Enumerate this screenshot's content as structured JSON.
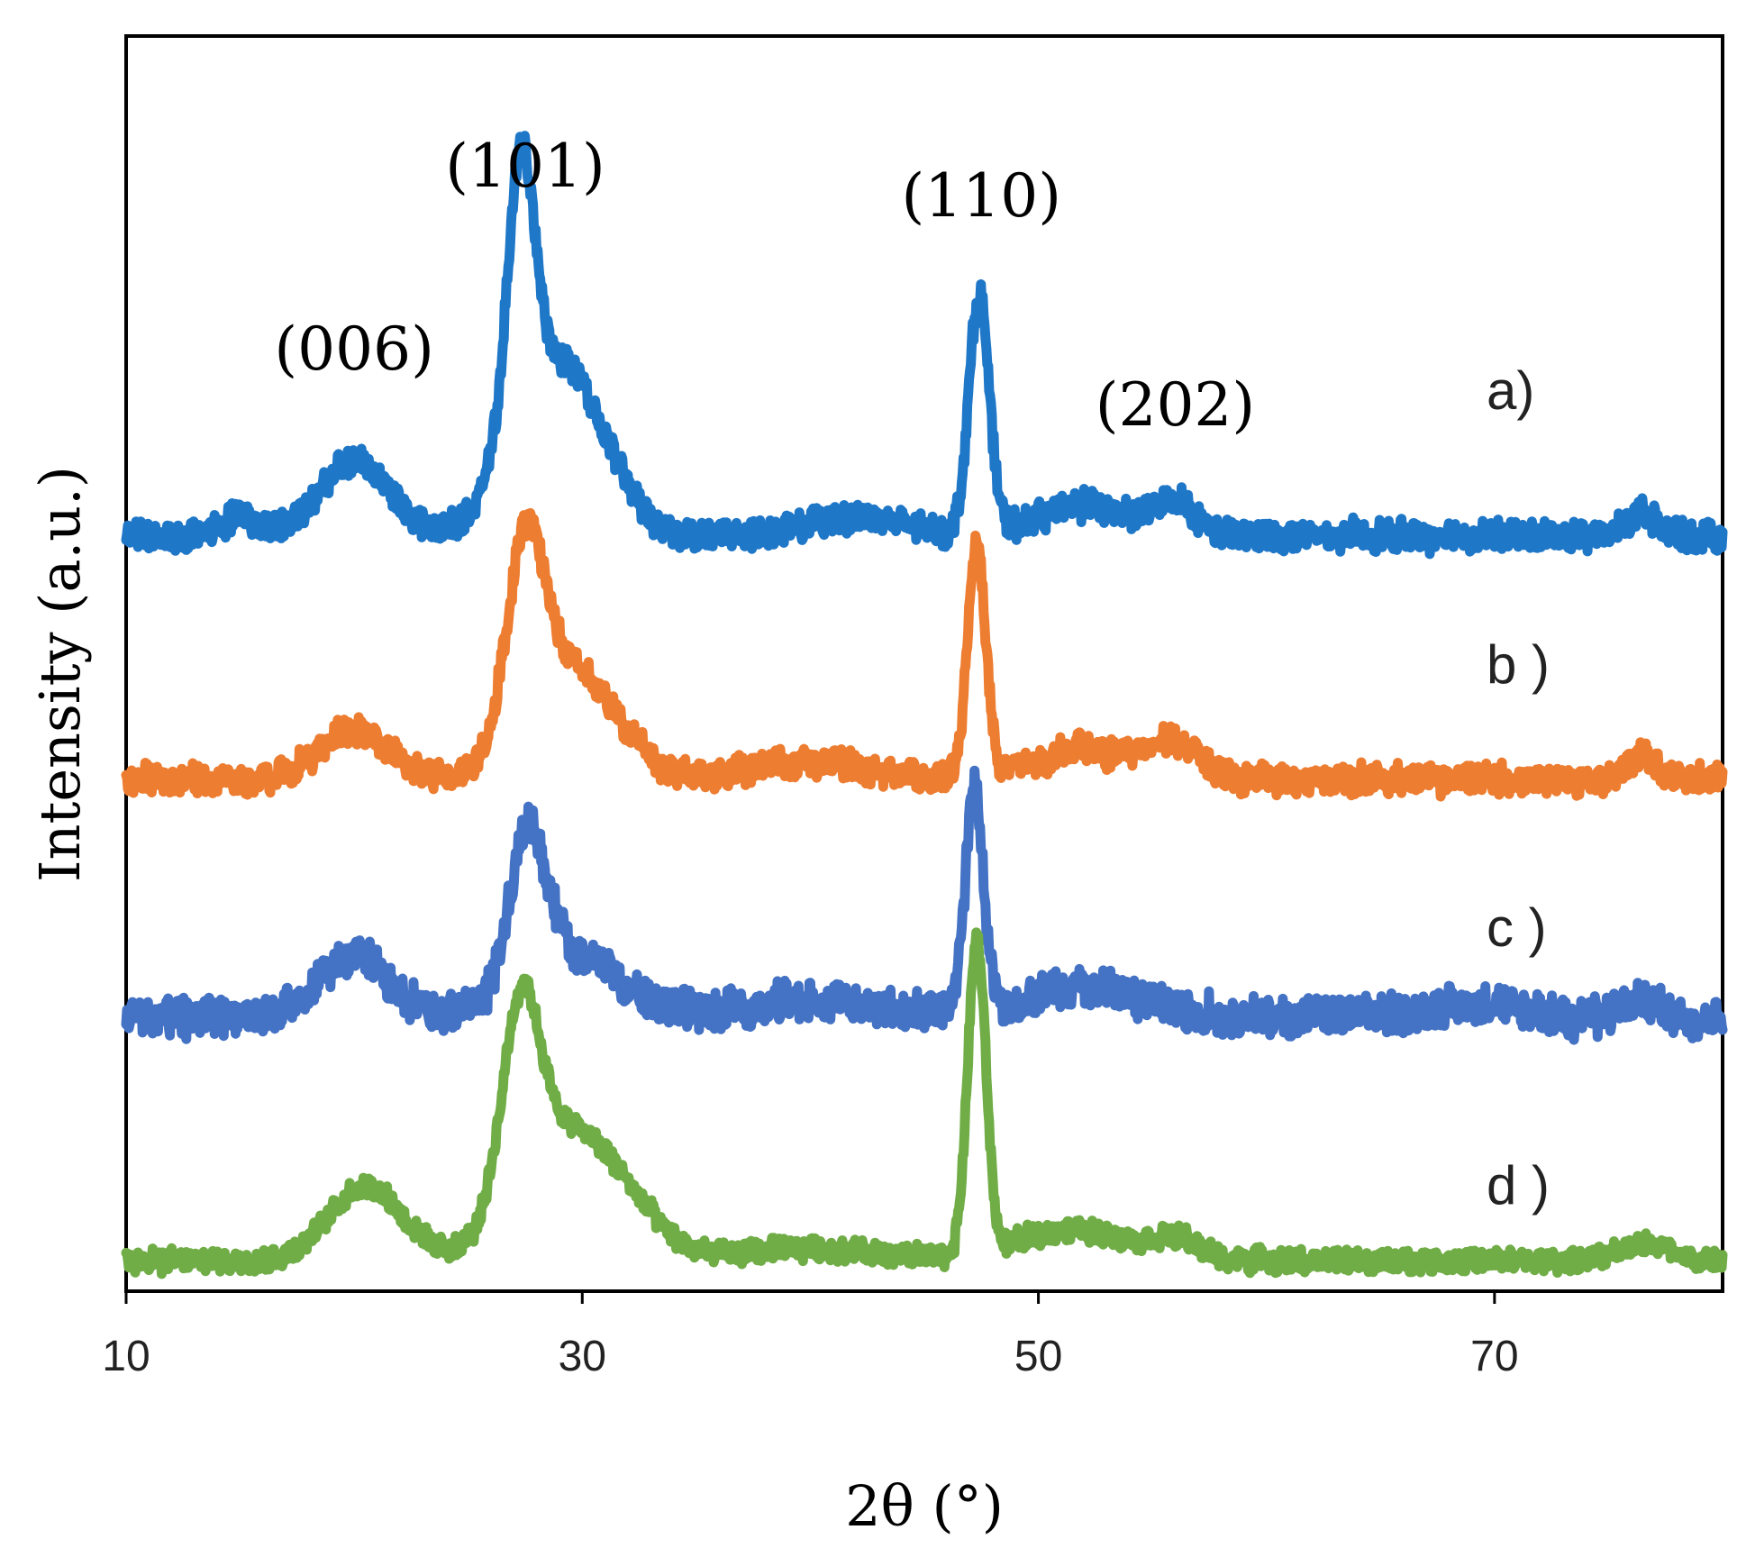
{
  "chart_data": {
    "type": "line",
    "title": "",
    "xlabel": "2θ (°)",
    "ylabel": "Intensity (a.u.)",
    "xlim": [
      10,
      80
    ],
    "xticks": [
      10,
      30,
      50,
      70
    ],
    "x_tick_labels": [
      "10",
      "30",
      "50",
      "70"
    ],
    "ylim": [
      0,
      100
    ],
    "y_ticks_shown": false,
    "grid": false,
    "legend": "none",
    "peak_annotations": [
      {
        "label": "(006)",
        "x": 20
      },
      {
        "label": "(101)",
        "x": 27.5
      },
      {
        "label": "(110)",
        "x": 47.5
      },
      {
        "label": "(202)",
        "x": 56
      }
    ],
    "series": [
      {
        "name": "a)",
        "color": "#1F77C8",
        "baseline": 60,
        "noise": 1.3,
        "peaks": [
          {
            "x": 20,
            "height": 6,
            "width": 1.5
          },
          {
            "x": 15,
            "height": 1.5,
            "width": 0.8
          },
          {
            "x": 27.3,
            "height": 21,
            "width": 0.6
          },
          {
            "x": 28.5,
            "height": 12,
            "width": 1.8
          },
          {
            "x": 30.5,
            "height": 4,
            "width": 1.5
          },
          {
            "x": 42,
            "height": 1.5,
            "width": 2
          },
          {
            "x": 47.4,
            "height": 19,
            "width": 0.45
          },
          {
            "x": 52,
            "height": 2.5,
            "width": 2
          },
          {
            "x": 56,
            "height": 2.5,
            "width": 0.9
          },
          {
            "x": 76.5,
            "height": 1.8,
            "width": 0.7
          }
        ]
      },
      {
        "name": "b )",
        "color": "#ED7D31",
        "baseline": 40.5,
        "noise": 1.3,
        "peaks": [
          {
            "x": 20,
            "height": 4,
            "width": 1.5
          },
          {
            "x": 27.5,
            "height": 14,
            "width": 0.8
          },
          {
            "x": 28.8,
            "height": 8,
            "width": 1.8
          },
          {
            "x": 31,
            "height": 3,
            "width": 1.5
          },
          {
            "x": 40,
            "height": 1.5,
            "width": 2.5
          },
          {
            "x": 47.3,
            "height": 19,
            "width": 0.4
          },
          {
            "x": 52,
            "height": 2.5,
            "width": 2
          },
          {
            "x": 56,
            "height": 3,
            "width": 1
          },
          {
            "x": 76.5,
            "height": 2,
            "width": 0.6
          }
        ]
      },
      {
        "name": "c )",
        "color": "#4472C4",
        "baseline": 21.5,
        "noise": 1.7,
        "peaks": [
          {
            "x": 20,
            "height": 5,
            "width": 1.5
          },
          {
            "x": 27.6,
            "height": 12,
            "width": 0.8
          },
          {
            "x": 29.5,
            "height": 5,
            "width": 2.2
          },
          {
            "x": 40,
            "height": 1.2,
            "width": 3
          },
          {
            "x": 47.2,
            "height": 18,
            "width": 0.4
          },
          {
            "x": 52,
            "height": 2.5,
            "width": 2.5
          },
          {
            "x": 69,
            "height": 1,
            "width": 2
          },
          {
            "x": 76.5,
            "height": 1.2,
            "width": 0.8
          }
        ]
      },
      {
        "name": "d )",
        "color": "#70AD47",
        "baseline": 2,
        "noise": 1.0,
        "peaks": [
          {
            "x": 20.5,
            "height": 6,
            "width": 1.6
          },
          {
            "x": 27.3,
            "height": 15,
            "width": 0.8
          },
          {
            "x": 28.8,
            "height": 9,
            "width": 2
          },
          {
            "x": 31.5,
            "height": 4,
            "width": 1.8
          },
          {
            "x": 40,
            "height": 1,
            "width": 3
          },
          {
            "x": 47.3,
            "height": 25,
            "width": 0.4
          },
          {
            "x": 51.5,
            "height": 2.5,
            "width": 2.5
          },
          {
            "x": 56,
            "height": 1.5,
            "width": 1
          },
          {
            "x": 76.5,
            "height": 1.5,
            "width": 1
          }
        ]
      }
    ]
  }
}
